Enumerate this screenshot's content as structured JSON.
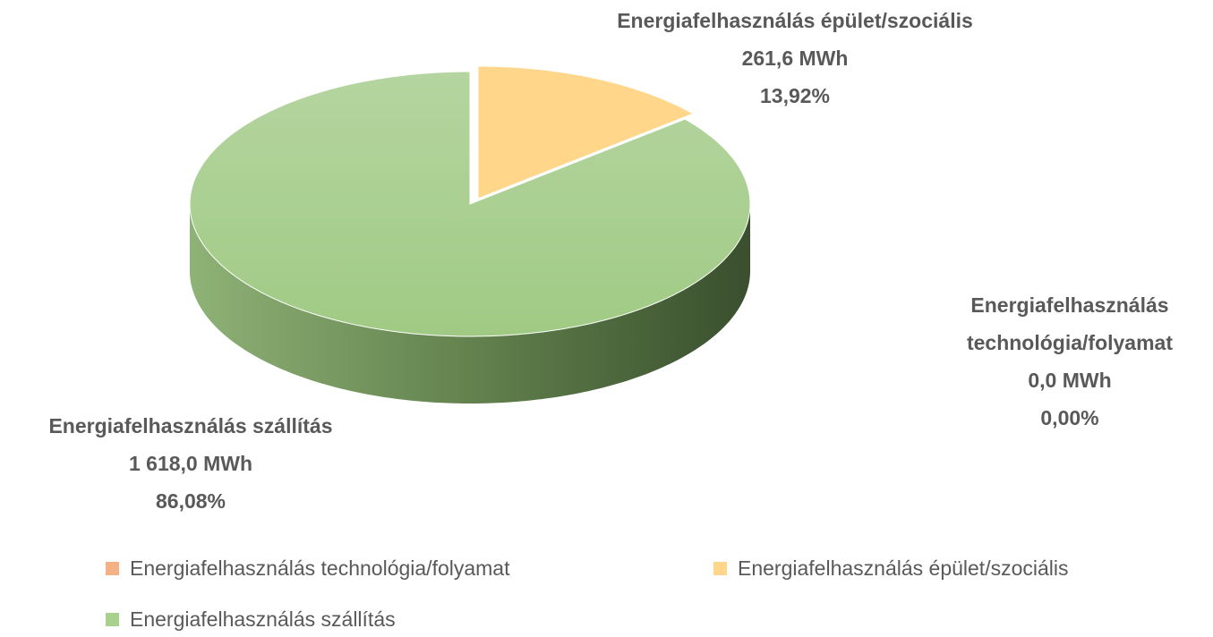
{
  "chart_data": {
    "type": "pie",
    "categories": [
      "Energiafelhasználás technológia/folyamat",
      "Energiafelhasználás épület/szociális",
      "Energiafelhasználás szállítás"
    ],
    "values": [
      0,
      261.6,
      1618.0
    ],
    "value_labels": [
      "0,0 MWh",
      "261,6 MWh",
      "1 618,0 MWh"
    ],
    "percentages": [
      0,
      13.92,
      86.08
    ],
    "percentage_labels": [
      "0,00%",
      "13,92%",
      "86,08%"
    ],
    "colors": [
      "#f4b183",
      "#ffd68a",
      "#a9d18e"
    ],
    "legend": "bottom"
  }
}
